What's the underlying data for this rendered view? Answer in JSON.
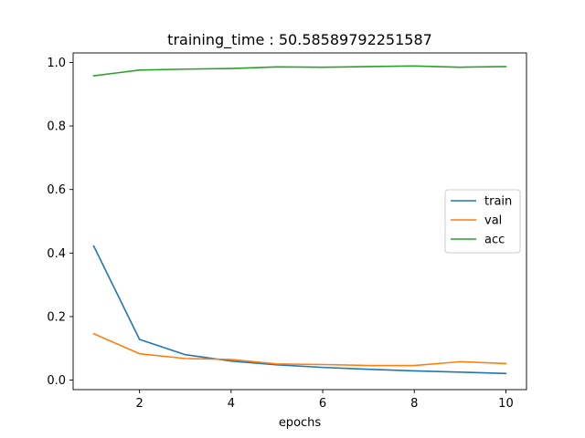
{
  "chart_data": {
    "type": "line",
    "title": "training_time : 50.58589792251587",
    "xlabel": "epochs",
    "ylabel": "",
    "x": [
      1,
      2,
      3,
      4,
      5,
      6,
      7,
      8,
      9,
      10
    ],
    "xlim": [
      0.55,
      10.45
    ],
    "ylim": [
      -0.03,
      1.03
    ],
    "xticks": [
      2,
      4,
      6,
      8,
      10
    ],
    "yticks": [
      0.0,
      0.2,
      0.4,
      0.6,
      0.8,
      1.0
    ],
    "grid": false,
    "legend_position": "center-right",
    "series": [
      {
        "name": "train",
        "color": "#1f77b4",
        "values": [
          0.422,
          0.128,
          0.08,
          0.06,
          0.048,
          0.04,
          0.034,
          0.029,
          0.025,
          0.021
        ]
      },
      {
        "name": "val",
        "color": "#ff7f0e",
        "values": [
          0.146,
          0.083,
          0.068,
          0.065,
          0.051,
          0.049,
          0.046,
          0.046,
          0.058,
          0.052
        ]
      },
      {
        "name": "acc",
        "color": "#2ca02c",
        "values": [
          0.958,
          0.976,
          0.979,
          0.981,
          0.986,
          0.985,
          0.987,
          0.989,
          0.985,
          0.987
        ]
      }
    ]
  }
}
